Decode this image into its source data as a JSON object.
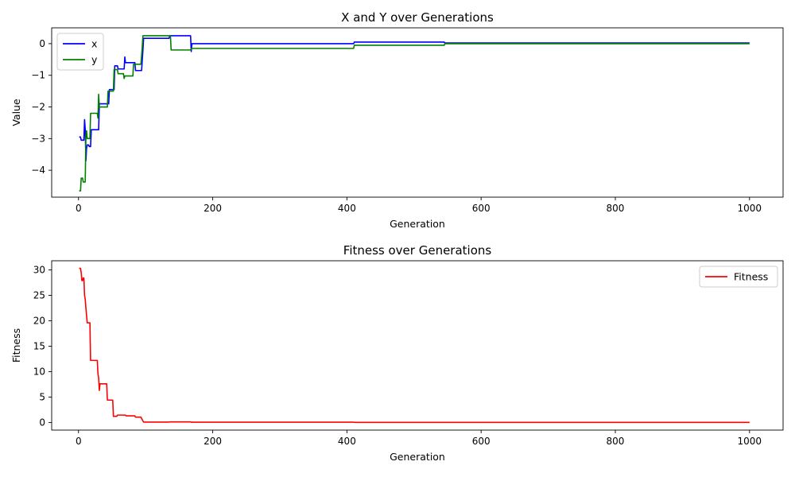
{
  "chart_data": [
    {
      "type": "line",
      "title": "X and Y over Generations",
      "xlabel": "Generation",
      "ylabel": "Value",
      "xlim": [
        -40,
        1050
      ],
      "ylim": [
        -4.85,
        0.5
      ],
      "xticks": [
        0,
        200,
        400,
        600,
        800,
        1000
      ],
      "yticks": [
        -4,
        -3,
        -2,
        -1,
        0
      ],
      "grid": false,
      "legend_position": "upper-left",
      "series": [
        {
          "name": "x",
          "color": "#0000ff",
          "points": [
            [
              1,
              -2.95
            ],
            [
              3,
              -2.95
            ],
            [
              4,
              -3.05
            ],
            [
              8,
              -3.05
            ],
            [
              9,
              -2.4
            ],
            [
              10,
              -2.7
            ],
            [
              11,
              -3.7
            ],
            [
              12,
              -3.3
            ],
            [
              13,
              -3.2
            ],
            [
              15,
              -3.2
            ],
            [
              16,
              -3.25
            ],
            [
              18,
              -3.25
            ],
            [
              19,
              -2.72
            ],
            [
              30,
              -2.72
            ],
            [
              31,
              -1.9
            ],
            [
              45,
              -1.9
            ],
            [
              46,
              -1.45
            ],
            [
              53,
              -1.45
            ],
            [
              54,
              -0.7
            ],
            [
              58,
              -0.7
            ],
            [
              59,
              -0.8
            ],
            [
              68,
              -0.8
            ],
            [
              69,
              -0.42
            ],
            [
              70,
              -0.6
            ],
            [
              84,
              -0.6
            ],
            [
              85,
              -0.85
            ],
            [
              94,
              -0.85
            ],
            [
              96,
              -0.2
            ],
            [
              97,
              0.17
            ],
            [
              135,
              0.17
            ],
            [
              136,
              0.25
            ],
            [
              167,
              0.25
            ],
            [
              168,
              -0.25
            ],
            [
              169,
              0.0
            ],
            [
              410,
              0.0
            ],
            [
              411,
              0.05
            ],
            [
              545,
              0.05
            ],
            [
              546,
              0.02
            ],
            [
              1000,
              0.02
            ]
          ]
        },
        {
          "name": "y",
          "color": "#008000",
          "points": [
            [
              1,
              -4.65
            ],
            [
              3,
              -4.65
            ],
            [
              4,
              -4.25
            ],
            [
              6,
              -4.25
            ],
            [
              7,
              -4.37
            ],
            [
              10,
              -4.37
            ],
            [
              11,
              -2.9
            ],
            [
              12,
              -2.75
            ],
            [
              13,
              -3.0
            ],
            [
              17,
              -3.0
            ],
            [
              18,
              -2.2
            ],
            [
              28,
              -2.2
            ],
            [
              29,
              -2.35
            ],
            [
              30,
              -1.6
            ],
            [
              31,
              -2.0
            ],
            [
              43,
              -2.0
            ],
            [
              44,
              -1.5
            ],
            [
              52,
              -1.5
            ],
            [
              53,
              -0.82
            ],
            [
              58,
              -0.82
            ],
            [
              59,
              -0.95
            ],
            [
              67,
              -0.95
            ],
            [
              68,
              -1.1
            ],
            [
              69,
              -1.02
            ],
            [
              81,
              -1.02
            ],
            [
              82,
              -0.65
            ],
            [
              93,
              -0.65
            ],
            [
              95,
              -0.1
            ],
            [
              96,
              0.25
            ],
            [
              137,
              0.25
            ],
            [
              138,
              -0.2
            ],
            [
              167,
              -0.2
            ],
            [
              168,
              -0.15
            ],
            [
              410,
              -0.15
            ],
            [
              411,
              -0.05
            ],
            [
              545,
              -0.05
            ],
            [
              546,
              0.0
            ],
            [
              1000,
              0.0
            ]
          ]
        }
      ]
    },
    {
      "type": "line",
      "title": "Fitness over Generations",
      "xlabel": "Generation",
      "ylabel": "Fitness",
      "xlim": [
        -40,
        1050
      ],
      "ylim": [
        -1.5,
        31.8
      ],
      "xticks": [
        0,
        200,
        400,
        600,
        800,
        1000
      ],
      "yticks": [
        0,
        5,
        10,
        15,
        20,
        25,
        30
      ],
      "grid": false,
      "legend_position": "upper-right",
      "series": [
        {
          "name": "Fitness",
          "color": "#ff0000",
          "points": [
            [
              1,
              30.3
            ],
            [
              3,
              30.3
            ],
            [
              4,
              29.5
            ],
            [
              5,
              27.9
            ],
            [
              6,
              27.9
            ],
            [
              7,
              28.4
            ],
            [
              8,
              28.4
            ],
            [
              9,
              25.0
            ],
            [
              10,
              24.2
            ],
            [
              11,
              22.5
            ],
            [
              12,
              21.0
            ],
            [
              13,
              19.6
            ],
            [
              17,
              19.6
            ],
            [
              18,
              12.2
            ],
            [
              28,
              12.2
            ],
            [
              29,
              9.5
            ],
            [
              30,
              8.8
            ],
            [
              31,
              6.3
            ],
            [
              32,
              7.6
            ],
            [
              42,
              7.6
            ],
            [
              43,
              4.4
            ],
            [
              51,
              4.4
            ],
            [
              52,
              1.2
            ],
            [
              57,
              1.2
            ],
            [
              58,
              1.45
            ],
            [
              70,
              1.45
            ],
            [
              71,
              1.3
            ],
            [
              84,
              1.3
            ],
            [
              85,
              1.05
            ],
            [
              93,
              1.05
            ],
            [
              96,
              0.3
            ],
            [
              97,
              0.08
            ],
            [
              135,
              0.08
            ],
            [
              136,
              0.12
            ],
            [
              167,
              0.12
            ],
            [
              168,
              0.05
            ],
            [
              410,
              0.05
            ],
            [
              411,
              0.02
            ],
            [
              1000,
              0.01
            ]
          ]
        }
      ]
    }
  ]
}
